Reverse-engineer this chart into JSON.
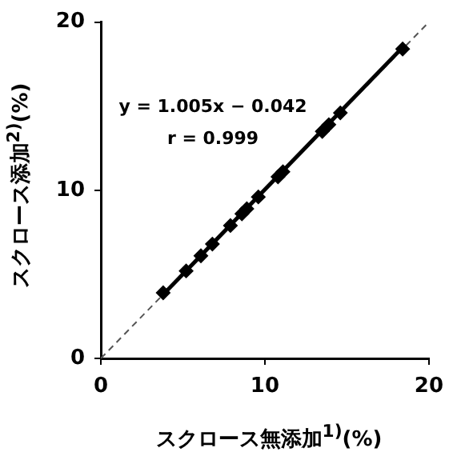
{
  "chart_data": {
    "type": "scatter",
    "xlabel": "スクロース無添加$^{1)}$(%)",
    "ylabel": "スクロース添加$^{2)}$(%)",
    "annotations": [
      "y = 1.005x − 0.042",
      "r = 0.999"
    ],
    "xlim": [
      0,
      20
    ],
    "ylim": [
      0,
      20
    ],
    "xticks": [
      0,
      10,
      20
    ],
    "yticks": [
      0,
      10,
      20
    ],
    "grid": false,
    "legend": false,
    "series": [
      {
        "color": "#000000",
        "marker": "diamond",
        "x": [
          3.8,
          5.2,
          6.1,
          6.8,
          7.9,
          8.6,
          8.9,
          9.6,
          10.8,
          11.1,
          13.5,
          13.9,
          14.6,
          18.4
        ],
        "values": [
          3.9,
          5.2,
          6.1,
          6.8,
          7.9,
          8.6,
          8.9,
          9.6,
          10.8,
          11.1,
          13.5,
          13.9,
          14.6,
          18.4
        ]
      },
      {
        "type": "line",
        "color": "#000000",
        "line_style": "solid",
        "marker": "none",
        "x": [
          3.8,
          18.4
        ],
        "values": [
          3.8,
          18.5
        ]
      },
      {
        "type": "line",
        "color": "#555555",
        "line_style": "dashed",
        "marker": "none",
        "x": [
          0,
          20
        ],
        "values": [
          0,
          20
        ]
      }
    ]
  }
}
